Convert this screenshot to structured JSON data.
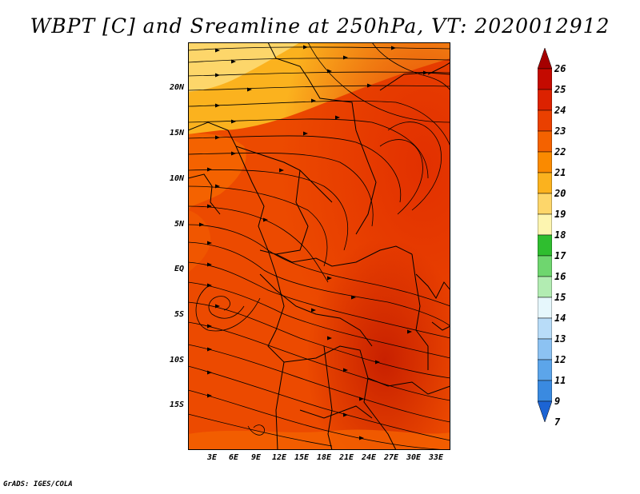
{
  "title": "WBPT [C] and Sreamline at 250hPa, VT: 2020012912",
  "credit": "GrADS: IGES/COLA",
  "map": {
    "field": "WBPT [C]",
    "level": "250hPa",
    "valid_time": "2020012912",
    "lat_labels": [
      "20N",
      "15N",
      "10N",
      "5N",
      "EQ",
      "5S",
      "10S",
      "15S"
    ],
    "lon_labels": [
      "3E",
      "6E",
      "9E",
      "12E",
      "15E",
      "18E",
      "21E",
      "24E",
      "27E",
      "30E",
      "33E"
    ]
  },
  "colorbar": {
    "labels": [
      "26",
      "25",
      "24",
      "23",
      "22",
      "21",
      "20",
      "19",
      "18",
      "17",
      "16",
      "15",
      "14",
      "13",
      "12",
      "11",
      "9",
      "7"
    ],
    "colors": [
      "#a50000",
      "#c40a00",
      "#dc2200",
      "#ea4000",
      "#f46200",
      "#fa8a00",
      "#fbb21e",
      "#fdd66a",
      "#fdf5b0",
      "#2fbe2f",
      "#6fd66f",
      "#b2ecb2",
      "#e6f7fc",
      "#b8dcf8",
      "#8cc2f2",
      "#5ca5ea",
      "#3a8ae0",
      "#1c64d4"
    ]
  }
}
